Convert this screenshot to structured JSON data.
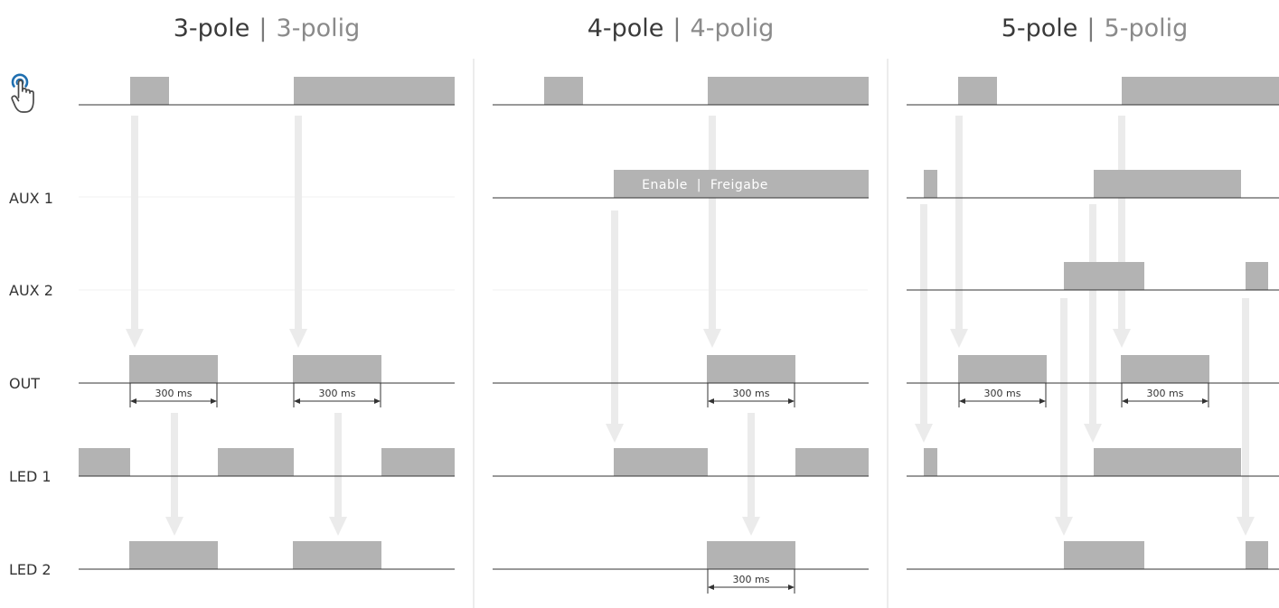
{
  "columns": [
    {
      "key": "three",
      "title_main": "3-pole",
      "separator": "|",
      "title_sub": "3-polig"
    },
    {
      "key": "four",
      "title_main": "4-pole",
      "separator": "|",
      "title_sub": "4-polig"
    },
    {
      "key": "five",
      "title_main": "5-pole",
      "separator": "|",
      "title_sub": "5-polig"
    }
  ],
  "row_labels": {
    "aux1": "AUX 1",
    "aux2": "AUX 2",
    "out": "OUT",
    "led1": "LED 1",
    "led2": "LED 2"
  },
  "pulse_label": "300 ms",
  "enable_label": "Enable  |  Freigabe",
  "icons": {
    "button": "touch-button-icon"
  },
  "colors": {
    "pulse": "#b3b3b3",
    "arrow": "#ebebeb",
    "line": "#333333",
    "divider": "#d8d8d8",
    "icon": "#1f6fb0"
  }
}
